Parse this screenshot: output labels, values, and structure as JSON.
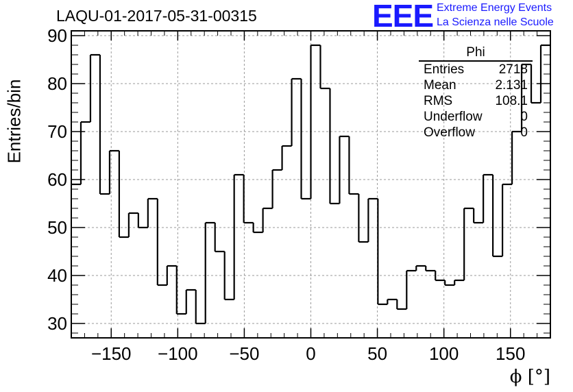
{
  "header": {
    "title": "LAQU-01-2017-05-31-00315",
    "logo_text": "EEE",
    "logo_line1": "Extreme Energy Events",
    "logo_line2": "La Scienza nelle Scuole"
  },
  "stats": {
    "title": "Phi",
    "rows": [
      {
        "key": "Entries",
        "value": "2718"
      },
      {
        "key": "Mean",
        "value": "2.131"
      },
      {
        "key": "RMS",
        "value": "108.1"
      },
      {
        "key": "Underflow",
        "value": "0"
      },
      {
        "key": "Overflow",
        "value": "0"
      }
    ]
  },
  "colors": {
    "line": "#000000",
    "grid": "#999999",
    "logo": "#1a1aff"
  },
  "chart_data": {
    "type": "histogram",
    "title": "LAQU-01-2017-05-31-00315",
    "xlabel": "ϕ [°]",
    "ylabel": "Entries/bin",
    "xlim": [
      -180,
      180
    ],
    "ylim": [
      27,
      91
    ],
    "grid": true,
    "xticks": [
      -150,
      -100,
      -50,
      0,
      50,
      100,
      150
    ],
    "xtick_labels": [
      "−150",
      "−100",
      "−50",
      "0",
      "50",
      "100",
      "150"
    ],
    "yticks": [
      30,
      40,
      50,
      60,
      70,
      80,
      90
    ],
    "ytick_labels": [
      "30",
      "40",
      "50",
      "60",
      "70",
      "80",
      "90"
    ],
    "bin_width": 7.2,
    "values": [
      59,
      72,
      86,
      57,
      66,
      48,
      53,
      50,
      56,
      38,
      42,
      32,
      37,
      30,
      51,
      45,
      35,
      61,
      51,
      49,
      54,
      62,
      67,
      81,
      56,
      88,
      79,
      55,
      69,
      57,
      47,
      56,
      34,
      35,
      33,
      41,
      42,
      41,
      39,
      38,
      39,
      54,
      51,
      61,
      44,
      59,
      70,
      84,
      76,
      88
    ]
  }
}
